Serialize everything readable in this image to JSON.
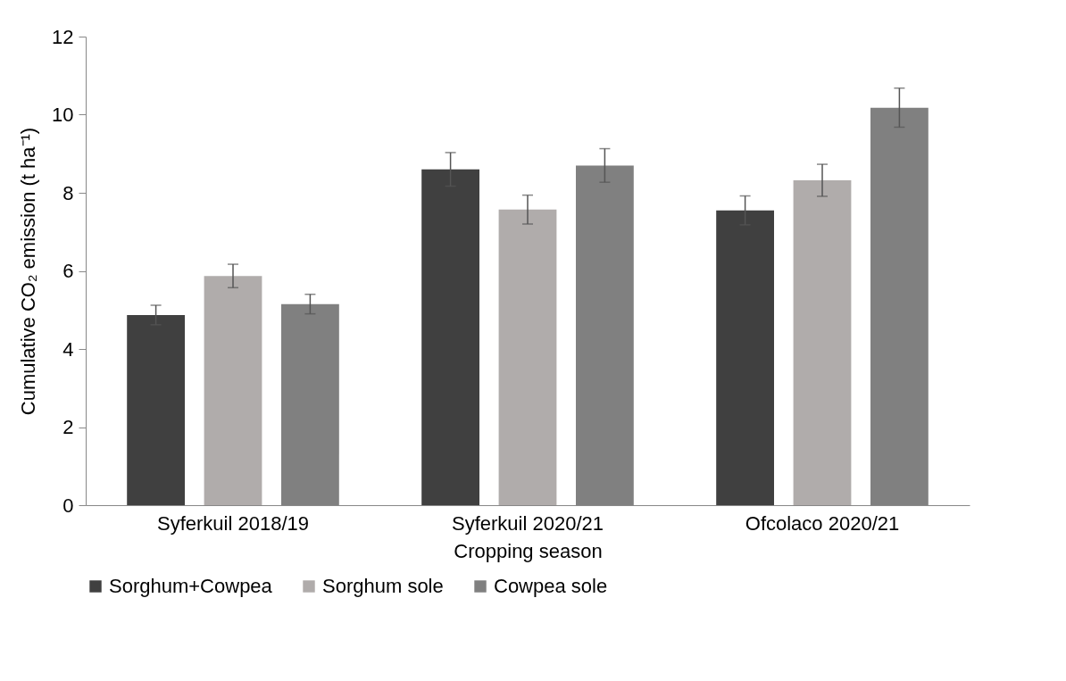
{
  "chart_data": {
    "type": "bar",
    "xlabel": "Cropping season",
    "ylabel": "Cumulative CO₂ emission (t ha⁻¹)",
    "categories": [
      "Syferkuil 2018/19",
      "Syferkuil 2020/21",
      "Ofcolaco 2020/21"
    ],
    "series": [
      {
        "name": "Sorghum+Cowpea",
        "color": "#404040",
        "values": [
          4.87,
          8.6,
          7.55
        ],
        "errors": [
          0.25,
          0.43,
          0.37
        ]
      },
      {
        "name": "Sorghum sole",
        "color": "#b0acab",
        "values": [
          5.87,
          7.57,
          8.32
        ],
        "errors": [
          0.3,
          0.37,
          0.41
        ]
      },
      {
        "name": "Cowpea sole",
        "color": "#808080",
        "values": [
          5.15,
          8.7,
          10.18
        ],
        "errors": [
          0.25,
          0.43,
          0.5
        ]
      }
    ],
    "ylim": [
      0,
      12
    ],
    "yticks": [
      0,
      2,
      4,
      6,
      8,
      10,
      12
    ],
    "legend": "bottom",
    "grid": false
  }
}
